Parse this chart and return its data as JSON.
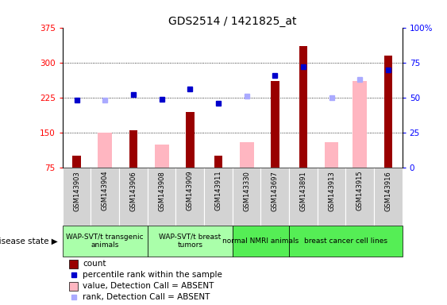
{
  "title": "GDS2514 / 1421825_at",
  "samples": [
    "GSM143903",
    "GSM143904",
    "GSM143906",
    "GSM143908",
    "GSM143909",
    "GSM143911",
    "GSM143330",
    "GSM143697",
    "GSM143891",
    "GSM143913",
    "GSM143915",
    "GSM143916"
  ],
  "count_values": [
    100,
    null,
    155,
    null,
    195,
    100,
    null,
    260,
    335,
    null,
    null,
    315
  ],
  "absent_value": [
    null,
    150,
    null,
    125,
    null,
    null,
    130,
    null,
    null,
    130,
    260,
    null
  ],
  "percentile_rank": [
    48,
    null,
    52,
    49,
    56,
    46,
    null,
    66,
    72,
    null,
    null,
    70
  ],
  "absent_rank": [
    null,
    48,
    null,
    null,
    null,
    null,
    51,
    null,
    null,
    50,
    63,
    null
  ],
  "ylim_left": [
    75,
    375
  ],
  "ylim_right": [
    0,
    100
  ],
  "yticks_left": [
    75,
    150,
    225,
    300,
    375
  ],
  "yticks_right": [
    0,
    25,
    50,
    75,
    100
  ],
  "group_ranges": [
    {
      "start": 0,
      "end": 2,
      "label": "WAP-SVT/t transgenic\nanimals",
      "color": "#aaffaa"
    },
    {
      "start": 3,
      "end": 5,
      "label": "WAP-SVT/t breast\ntumors",
      "color": "#aaffaa"
    },
    {
      "start": 6,
      "end": 7,
      "label": "normal NMRI animals",
      "color": "#55ee55"
    },
    {
      "start": 8,
      "end": 11,
      "label": "breast cancer cell lines",
      "color": "#55ee55"
    }
  ],
  "disease_state_label": "disease state",
  "bar_color_count": "#990000",
  "bar_color_absent": "#FFB6C1",
  "dot_color_present": "#0000CC",
  "dot_color_absent": "#aaaaff",
  "legend_items": [
    {
      "label": "count",
      "color": "#990000",
      "type": "bar"
    },
    {
      "label": "percentile rank within the sample",
      "color": "#0000CC",
      "type": "dot"
    },
    {
      "label": "value, Detection Call = ABSENT",
      "color": "#FFB6C1",
      "type": "bar"
    },
    {
      "label": "rank, Detection Call = ABSENT",
      "color": "#aaaaff",
      "type": "dot"
    }
  ],
  "grid_lines": [
    150,
    225,
    300
  ],
  "background_color": "#ffffff",
  "sample_box_color": "#d3d3d3",
  "bar_width": 0.5
}
